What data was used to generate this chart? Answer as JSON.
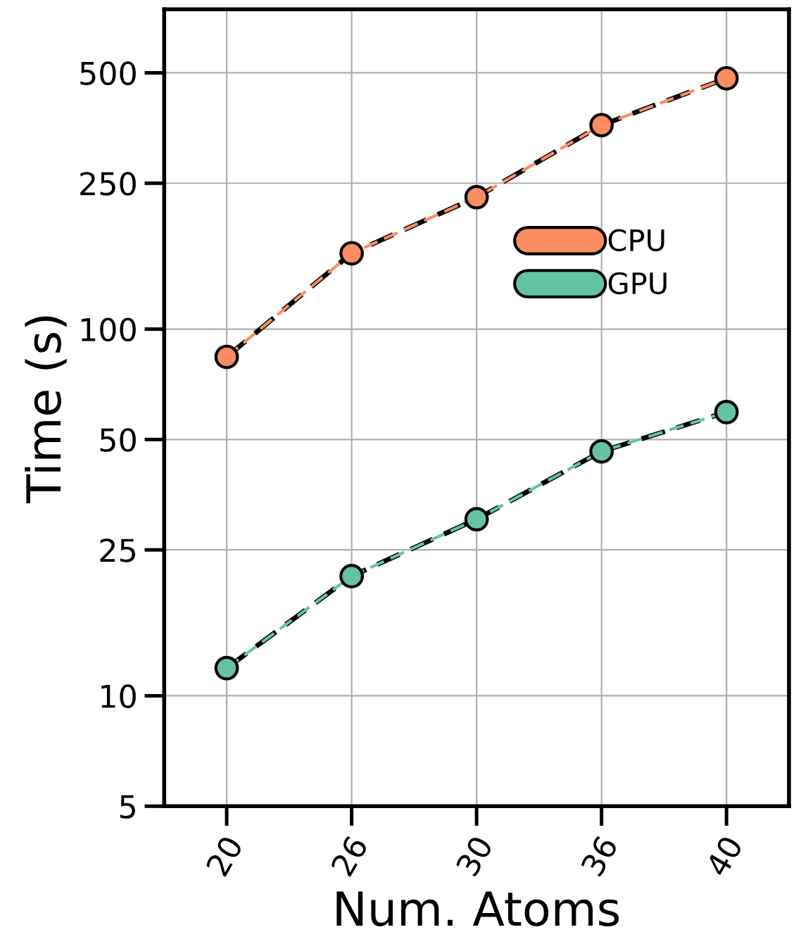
{
  "chart_data": {
    "type": "line",
    "xlabel": "Num. Atoms",
    "ylabel": "Time (s)",
    "categories": [
      "20",
      "26",
      "30",
      "36",
      "40"
    ],
    "series": [
      {
        "name": "CPU",
        "color": "#fc8d62",
        "values": [
          84,
          161,
          229,
          360,
          483
        ]
      },
      {
        "name": "GPU",
        "color": "#66c2a5",
        "values": [
          11.9,
          21.2,
          30.3,
          46.4,
          59.4
        ]
      }
    ],
    "log": "y",
    "ylim": [
      5,
      745
    ],
    "yticks": [
      5,
      10,
      25,
      50,
      100,
      250,
      500
    ],
    "grid": true,
    "legend": "right",
    "marker": "circle",
    "line_style": "dashed"
  }
}
